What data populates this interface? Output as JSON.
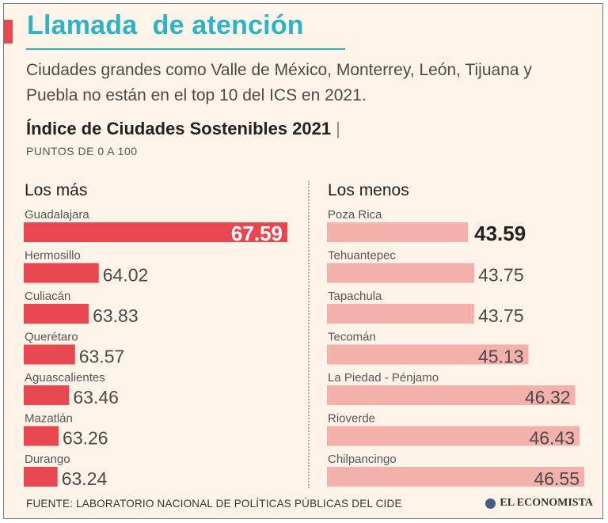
{
  "header": {
    "title": "Llamada  de atención",
    "subtitle": "Ciudades grandes como Valle de México, Monterrey, León, Tijuana y Puebla no están en el top 10 del ICS en 2021."
  },
  "colors": {
    "accent": "#e8474f",
    "title": "#2cb3c4",
    "bar_top": "#e8474f",
    "bar_bottom": "#f4b1ab",
    "background": "#fdf3e8"
  },
  "chart_data": [
    {
      "type": "bar",
      "orientation": "horizontal",
      "title": "Índice de Ciudades Sostenibles 2021",
      "units": "PUNTOS DE 0 A 100",
      "panel_title": "Los más",
      "categories": [
        "Guadalajara",
        "Hermosillo",
        "Culiacán",
        "Querétaro",
        "Aguascalientes",
        "Mazatlán",
        "Durango"
      ],
      "values": [
        67.59,
        64.02,
        63.83,
        63.57,
        63.46,
        63.26,
        63.24
      ],
      "value_labels": [
        "67.59",
        "64.02",
        "63.83",
        "63.57",
        "63.46",
        "63.26",
        "63.24"
      ],
      "highlight": "Guadalajara"
    },
    {
      "type": "bar",
      "orientation": "horizontal",
      "title": "Índice de Ciudades Sostenibles 2021",
      "units": "PUNTOS DE 0 A 100",
      "panel_title": "Los menos",
      "categories": [
        "Poza Rica",
        "Tehuantepec",
        "Tapachula",
        "Tecomán",
        "La Piedad - Pénjamo",
        "Rioverde",
        "Chilpancingo"
      ],
      "values": [
        43.59,
        43.75,
        43.75,
        45.13,
        46.32,
        46.43,
        46.55
      ],
      "value_labels": [
        "43.59",
        "43.75",
        "43.75",
        "45.13",
        "46.32",
        "46.43",
        "46.55"
      ],
      "highlight": "Poza Rica"
    }
  ],
  "footer": {
    "source": "FUENTE: LABORATORIO NACIONAL DE POLÍTICAS PÚBLICAS DEL CIDE",
    "brand": "EL ECONOMISTA"
  }
}
